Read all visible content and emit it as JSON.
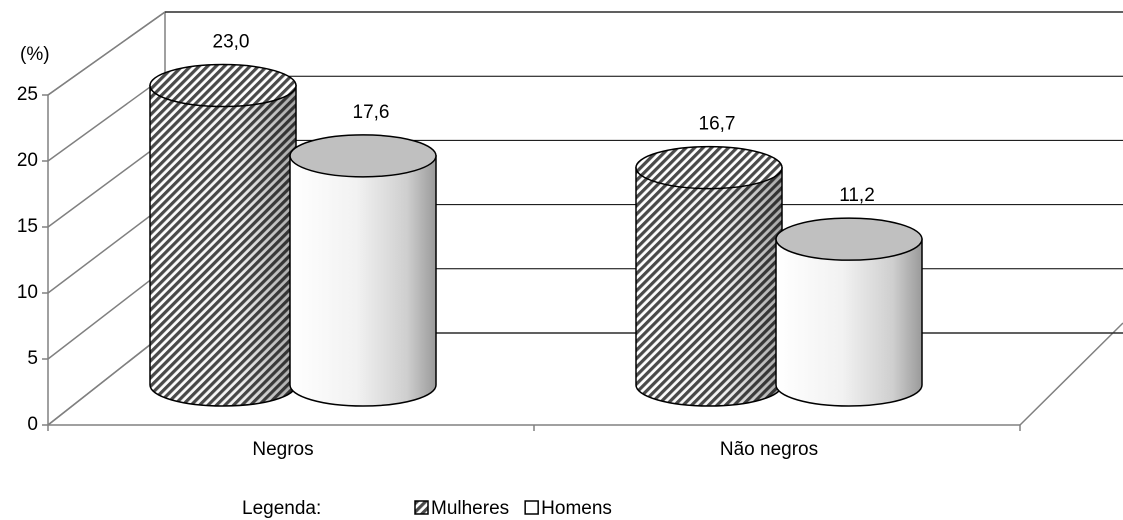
{
  "chart_data": {
    "type": "cylinder",
    "y_label": "(%)",
    "categories": [
      "Negros",
      "Não negros"
    ],
    "series": [
      {
        "name": "Mulheres",
        "color": "#7a7a7a",
        "values": [
          23.0,
          16.7
        ],
        "value_labels": [
          "23,0",
          "16,7"
        ]
      },
      {
        "name": "Homens",
        "color": "#ffffff",
        "values": [
          17.6,
          11.2
        ],
        "value_labels": [
          "17,6",
          "11,2"
        ]
      }
    ],
    "ylim": [
      0,
      25
    ],
    "yticks": [
      0,
      5,
      10,
      15,
      20,
      25
    ],
    "grid": true,
    "legend_title": "Legenda:",
    "legend": "bottom"
  }
}
